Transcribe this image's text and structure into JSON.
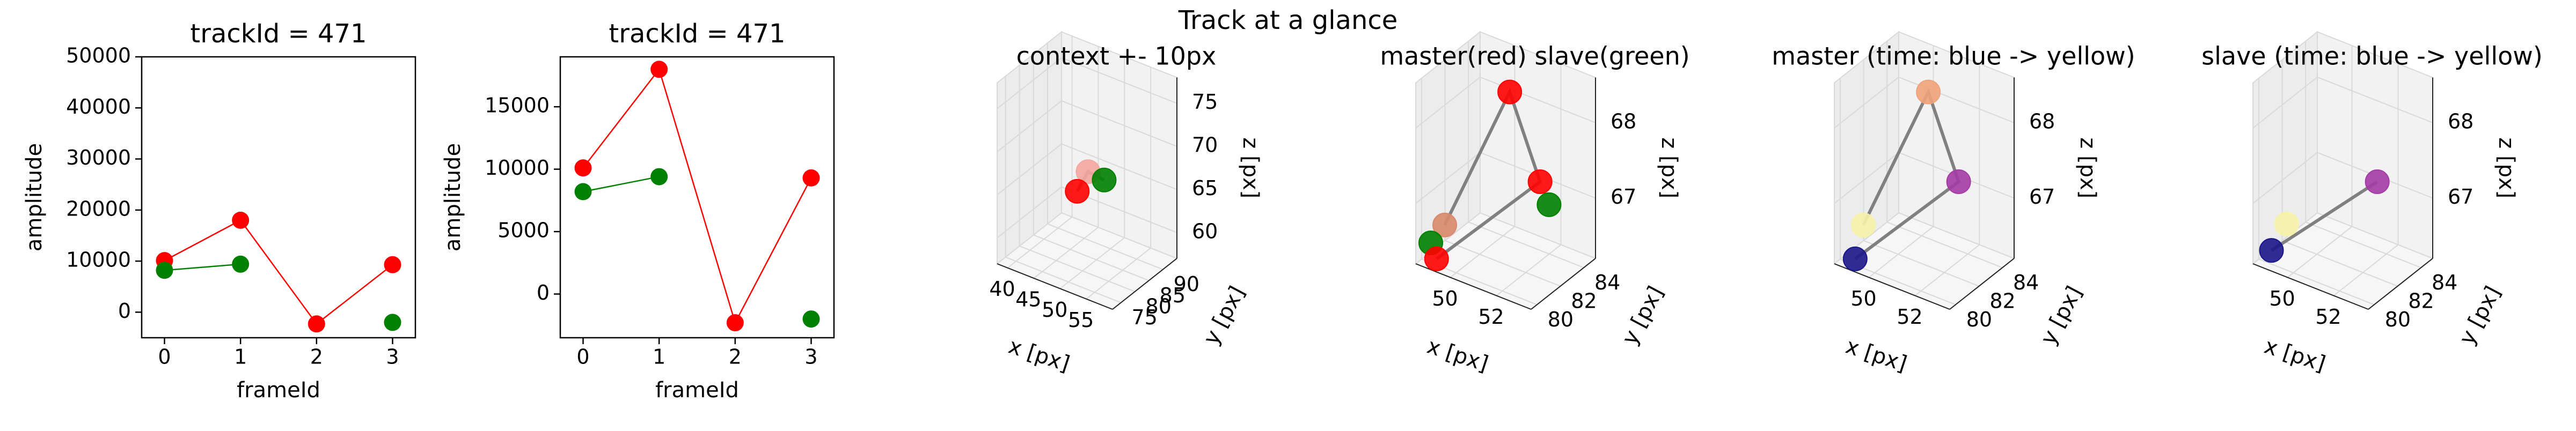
{
  "suptitle": "Track at a glance",
  "colors": {
    "master": "#ff0000",
    "slave": "#008000",
    "line3d": "#808080",
    "pane": "#f2f2f2",
    "grid": "#d9d9d9"
  },
  "chart_data": [
    {
      "type": "line",
      "title": "trackId = 471",
      "xlabel": "frameId",
      "ylabel": "amplitude",
      "xlim": [
        -0.3,
        3.3
      ],
      "ylim": [
        -5000,
        50000
      ],
      "xticks": [
        0,
        1,
        2,
        3
      ],
      "yticks": [
        0,
        10000,
        20000,
        30000,
        40000,
        50000
      ],
      "series": [
        {
          "color": "#ff0000",
          "x": [
            0,
            1,
            2,
            3
          ],
          "y": [
            10100,
            18000,
            -2300,
            9300
          ],
          "marker_x": [
            0,
            1,
            2,
            3
          ]
        },
        {
          "color": "#008000",
          "x": [
            0,
            1
          ],
          "y": [
            8200,
            9400
          ],
          "marker_x": [
            0,
            1,
            3
          ],
          "marker_y": [
            8200,
            9400,
            -2000
          ]
        }
      ]
    },
    {
      "type": "line",
      "title": "trackId = 471",
      "xlabel": "frameId",
      "ylabel": "amplitude",
      "xlim": [
        -0.3,
        3.3
      ],
      "ylim": [
        -3500,
        19000
      ],
      "xticks": [
        0,
        1,
        2,
        3
      ],
      "yticks": [
        0,
        5000,
        10000,
        15000
      ],
      "series": [
        {
          "color": "#ff0000",
          "x": [
            0,
            1,
            2,
            3
          ],
          "y": [
            10100,
            18000,
            -2300,
            9300
          ],
          "marker_x": [
            0,
            1,
            2,
            3
          ]
        },
        {
          "color": "#008000",
          "x": [
            0,
            1
          ],
          "y": [
            8200,
            9400
          ],
          "marker_x": [
            0,
            1,
            3
          ],
          "marker_y": [
            8200,
            9400,
            -2000
          ]
        }
      ]
    },
    {
      "type": "scatter",
      "title": "context +- 10px",
      "xlabel": "x [px]",
      "ylabel": "y [px]",
      "zlabel": "z [px]",
      "xlim": [
        38,
        60
      ],
      "ylim": [
        72,
        95
      ],
      "zlim": [
        57,
        78
      ],
      "xticks": [
        40,
        45,
        50,
        55
      ],
      "yticks": [
        75,
        80,
        85,
        90
      ],
      "zticks": [
        60,
        65,
        70,
        75
      ],
      "points": [
        {
          "x": 50,
          "y": 82,
          "z": 68,
          "color": "#f4a6a0"
        },
        {
          "x": 49,
          "y": 80,
          "z": 66,
          "color": "#ff0000"
        },
        {
          "x": 52,
          "y": 84,
          "z": 67,
          "color": "#008000"
        }
      ],
      "lines": [
        {
          "x": [
            49,
            50,
            52
          ],
          "y": [
            80,
            82,
            84
          ],
          "z": [
            66,
            68,
            67
          ]
        }
      ]
    },
    {
      "type": "scatter",
      "title": "master(red) slave(green)",
      "xlabel": "x [px]",
      "ylabel": "y [px]",
      "zlabel": "z [px]",
      "xlim": [
        48.5,
        53.5
      ],
      "ylim": [
        79.5,
        85
      ],
      "zlim": [
        66.2,
        68.6
      ],
      "xticks": [
        50,
        52
      ],
      "yticks": [
        80,
        82,
        84
      ],
      "zticks": [
        67,
        68
      ],
      "points": [
        {
          "x": 49.3,
          "y": 80.4,
          "z": 66.7,
          "color": "#d9896a"
        },
        {
          "x": 49.0,
          "y": 79.8,
          "z": 66.5,
          "color": "#008000"
        },
        {
          "x": 51.0,
          "y": 82.6,
          "z": 68.4,
          "color": "#ff0000"
        },
        {
          "x": 51.3,
          "y": 84.6,
          "z": 67.0,
          "color": "#ff0000"
        },
        {
          "x": 52.4,
          "y": 83.2,
          "z": 67.0,
          "color": "#008000"
        },
        {
          "x": 49.2,
          "y": 79.9,
          "z": 66.3,
          "color": "#ff0000"
        }
      ],
      "lines": [
        {
          "x": [
            49.3,
            51.0,
            51.3,
            49.2
          ],
          "y": [
            80.4,
            82.6,
            84.6,
            79.9
          ],
          "z": [
            66.7,
            68.4,
            67.0,
            66.3
          ]
        }
      ]
    },
    {
      "type": "scatter",
      "title": "master (time: blue -> yellow)",
      "xlabel": "x [px]",
      "ylabel": "y [px]",
      "zlabel": "z [px]",
      "xlim": [
        48.5,
        53.5
      ],
      "ylim": [
        79.5,
        85
      ],
      "zlim": [
        66.2,
        68.6
      ],
      "xticks": [
        50,
        52
      ],
      "yticks": [
        80,
        82,
        84
      ],
      "zticks": [
        67,
        68
      ],
      "points": [
        {
          "x": 49.3,
          "y": 80.4,
          "z": 66.7,
          "color": "#f6f2a8"
        },
        {
          "x": 51.0,
          "y": 82.6,
          "z": 68.4,
          "color": "#f0a27a"
        },
        {
          "x": 51.3,
          "y": 84.6,
          "z": 67.0,
          "color": "#a43ba6"
        },
        {
          "x": 49.2,
          "y": 79.9,
          "z": 66.3,
          "color": "#1b168a"
        }
      ],
      "lines": [
        {
          "x": [
            49.3,
            51.0,
            51.3,
            49.2
          ],
          "y": [
            80.4,
            82.6,
            84.6,
            79.9
          ],
          "z": [
            66.7,
            68.4,
            67.0,
            66.3
          ]
        }
      ]
    },
    {
      "type": "scatter",
      "title": "slave (time: blue -> yellow)",
      "xlabel": "x [px]",
      "ylabel": "y [px]",
      "zlabel": "z [px]",
      "xlim": [
        48.5,
        53.5
      ],
      "ylim": [
        79.5,
        85
      ],
      "zlim": [
        66.2,
        68.6
      ],
      "xticks": [
        50,
        52
      ],
      "yticks": [
        80,
        82,
        84
      ],
      "zticks": [
        67,
        68
      ],
      "points": [
        {
          "x": 49.4,
          "y": 80.6,
          "z": 66.7,
          "color": "#f6f2a8"
        },
        {
          "x": 51.3,
          "y": 84.6,
          "z": 67.0,
          "color": "#a43ba6"
        },
        {
          "x": 49.1,
          "y": 79.9,
          "z": 66.4,
          "color": "#1b168a"
        }
      ],
      "lines": [
        {
          "x": [
            51.3,
            49.1
          ],
          "y": [
            84.6,
            79.9
          ],
          "z": [
            67.0,
            66.4
          ]
        }
      ]
    }
  ]
}
